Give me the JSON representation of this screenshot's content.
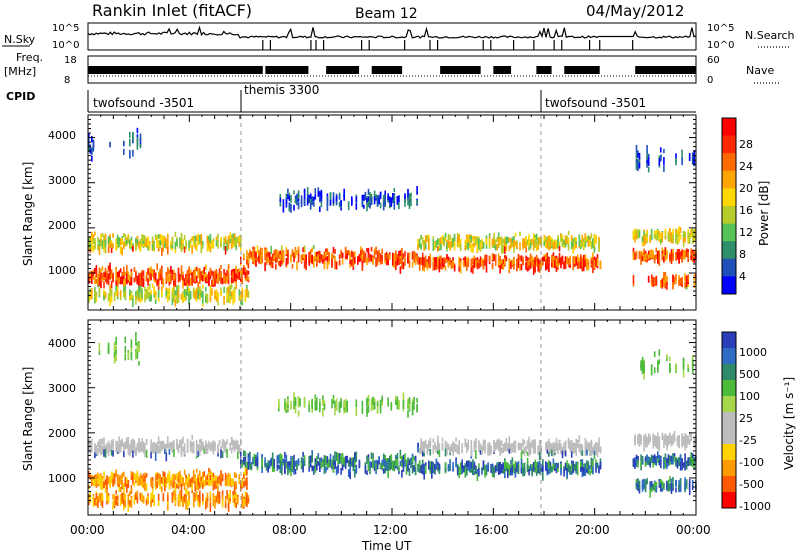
{
  "header": {
    "station": "Rankin Inlet (fitACF)",
    "beam": "Beam 12",
    "date": "04/May/2012"
  },
  "colors": {
    "power_scale": [
      "#0000ff",
      "#1f4fb8",
      "#2f8f6a",
      "#57c257",
      "#b6cc2a",
      "#ffd700",
      "#ffa500",
      "#ff6a00",
      "#ff2a00",
      "#ff0000"
    ],
    "velocity_scale": [
      "#2a3fb8",
      "#2f6cc4",
      "#2f8a6a",
      "#4cba3a",
      "#a6d64a",
      "#bdbdbd",
      "#bdbdbd",
      "#ffd200",
      "#ff9a00",
      "#ff5a00",
      "#ff0000"
    ]
  },
  "chart_data": [
    {
      "type": "line",
      "panel": "noise",
      "labels": {
        "left": "N.Sky",
        "right": "N.Search"
      },
      "left_ticks": [
        "10^5",
        "10^0"
      ],
      "right_ticks": [
        "10^5",
        "10^0"
      ]
    },
    {
      "type": "line",
      "panel": "frequency",
      "labels": {
        "left_line1": "Freq.",
        "left_line2": "[MHz]",
        "right": "Nave"
      },
      "left_ticks": [
        "18",
        "8"
      ],
      "right_ticks": [
        "60",
        "0"
      ]
    },
    {
      "type": "table",
      "panel": "cpid",
      "label": "CPID",
      "segments": [
        {
          "name": "twofsound -3501",
          "start": 0,
          "end": 6
        },
        {
          "name": "themis 3300",
          "start": 6,
          "end": 18
        },
        {
          "name": "twofsound -3501",
          "start": 18,
          "end": 24
        }
      ]
    },
    {
      "type": "heatmap",
      "panel": "power",
      "ylabel": "Slant Range [km]",
      "yticks": [
        "1000",
        "2000",
        "3000",
        "4000"
      ],
      "ylim": [
        180,
        4500
      ],
      "xlim": [
        0,
        24
      ],
      "data_gap": [
        20.2,
        21.5
      ],
      "colorbar": {
        "label": "Power [dB]",
        "ticks": [
          "4",
          "8",
          "12",
          "16",
          "20",
          "24",
          "28"
        ]
      }
    },
    {
      "type": "heatmap",
      "panel": "velocity",
      "ylabel": "Slant Range [km]",
      "yticks": [
        "1000",
        "2000",
        "3000",
        "4000"
      ],
      "ylim": [
        180,
        4500
      ],
      "xlim": [
        0,
        24
      ],
      "data_gap": [
        20.2,
        21.5
      ],
      "colorbar": {
        "label": "Velocity [m s⁻¹]",
        "ticks": [
          "1000",
          "500",
          "100",
          "25",
          "-25",
          "-100",
          "-500",
          "-1000"
        ]
      },
      "xlabel": "Time UT",
      "xticks": [
        "00:00",
        "04:00",
        "08:00",
        "12:00",
        "16:00",
        "20:00",
        "00:00"
      ]
    }
  ]
}
